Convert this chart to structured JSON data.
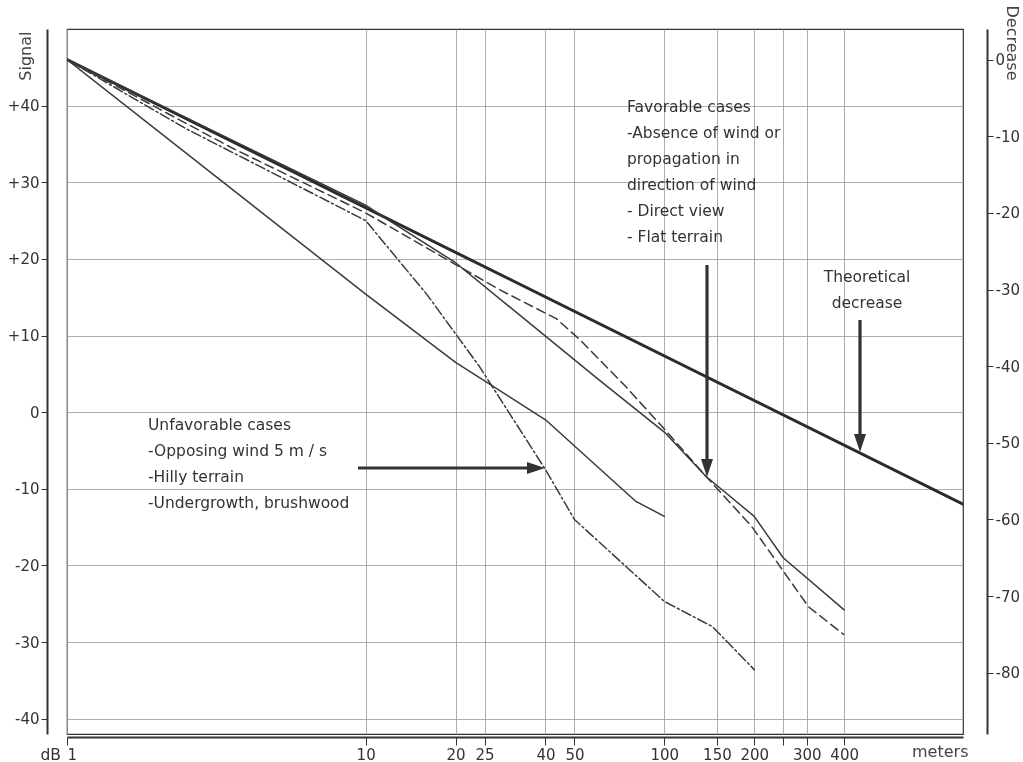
{
  "chart_data": {
    "type": "line",
    "xlabel": "meters",
    "ylabel": "Signal",
    "y2label": "Decrease",
    "log": "x",
    "grid": true,
    "xlim": [
      1,
      1000
    ],
    "xticks": [
      1,
      10,
      20,
      25,
      40,
      50,
      100,
      150,
      200,
      {
        "value": 250,
        "label": null
      },
      300,
      400
    ],
    "ylim": [
      -42,
      50
    ],
    "yticks": [
      {
        "value": 40,
        "label": "+40"
      },
      {
        "value": 30,
        "label": "+30"
      },
      {
        "value": 20,
        "label": "+20"
      },
      {
        "value": 10,
        "label": "+10"
      },
      0,
      -10,
      -20,
      -30,
      -40
    ],
    "y2lim": [
      -88,
      4
    ],
    "y2ticks": [
      0,
      -10,
      -20,
      -30,
      -40,
      -50,
      -60,
      -70,
      -80
    ],
    "series": [
      {
        "color": "#2b2b2b",
        "line_style": "solid",
        "x": [
          1,
          1000
        ],
        "values": [
          46,
          -12
        ]
      },
      {
        "color": "#3a3a3a",
        "line_style": "solid",
        "x": [
          1,
          10,
          12,
          20,
          60,
          100,
          138,
          200,
          250,
          400
        ],
        "values": [
          46,
          27,
          25,
          19.5,
          4.3,
          -2.6,
          -8.4,
          -13.6,
          -19,
          -25.8
        ]
      },
      {
        "color": "#3a3a3a",
        "line_style": "dashed",
        "x": [
          1,
          3.6,
          10,
          28,
          43.5,
          52,
          74,
          100,
          138,
          196,
          304,
          398
        ],
        "values": [
          46,
          34.4,
          26,
          16,
          12.2,
          9.5,
          3.4,
          -2.2,
          -8.4,
          -14.9,
          -25.4,
          -29
        ]
      },
      {
        "color": "#3a3a3a",
        "line_style": "dashdot",
        "x": [
          1,
          2.5,
          10,
          16,
          24,
          40,
          50,
          100,
          145,
          200
        ],
        "values": [
          46,
          37,
          25,
          15.4,
          6,
          -7.5,
          -14,
          -24.7,
          -28,
          -33.6
        ]
      },
      {
        "color": "#3a3a3a",
        "line_style": "solid",
        "x": [
          1,
          10,
          20,
          40,
          80,
          100
        ],
        "values": [
          46,
          15.4,
          6.5,
          -1,
          -11.6,
          -13.6
        ]
      }
    ],
    "annotations": [
      "Favorable cases\n-Absence of wind or\n propagation in\n direction of wind\n- Direct view\n- Flat terrain",
      "Unfavorable cases\n-Opposing wind 5 m / s\n-Hilly terrain\n-Undergrowth, brushwood",
      "Theoretical\ndecrease",
      "dB"
    ]
  }
}
